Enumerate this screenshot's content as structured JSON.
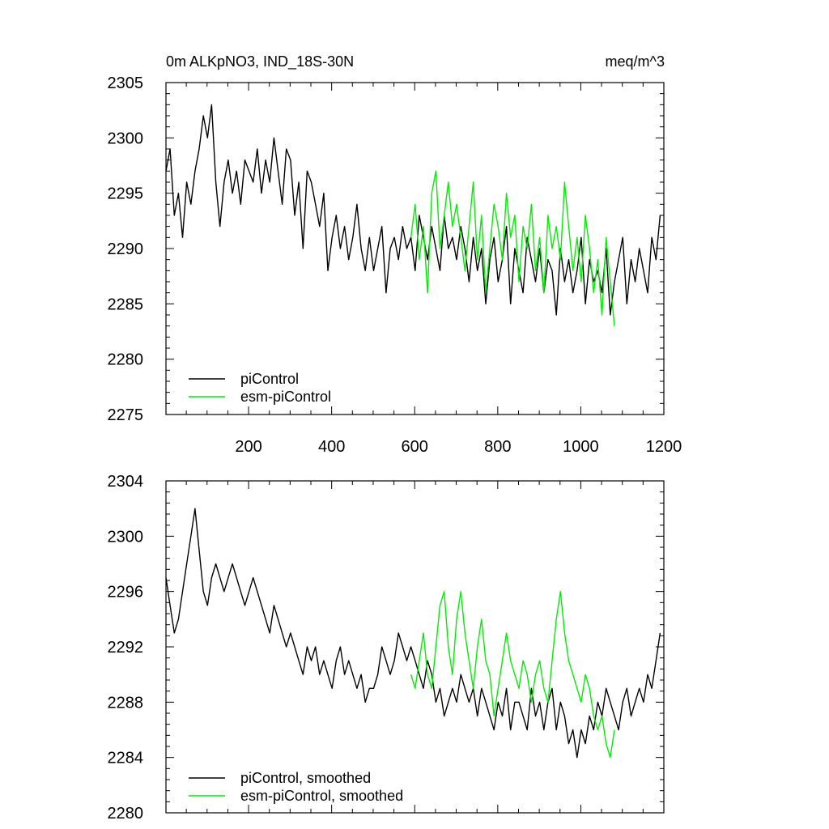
{
  "chart_data": [
    {
      "type": "line",
      "title": "0m ALKpNO3, IND_18S-30N",
      "units": "meq/m^3",
      "xlim": [
        1,
        1200
      ],
      "ylim": [
        2275,
        2305
      ],
      "x_ticks": [
        200,
        400,
        600,
        800,
        1000,
        1200
      ],
      "y_ticks": [
        2275,
        2280,
        2285,
        2290,
        2295,
        2300,
        2305
      ],
      "legend": "bottom-left",
      "series": [
        {
          "name": "piControl",
          "color": "#000000",
          "x_start": 1,
          "x_step": 10,
          "values": [
            2297,
            2299,
            2293,
            2295,
            2291,
            2296,
            2294,
            2297,
            2299,
            2302,
            2300,
            2303,
            2296,
            2292,
            2296,
            2298,
            2295,
            2297,
            2294,
            2298,
            2297,
            2296,
            2299,
            2295,
            2298,
            2296,
            2300,
            2297,
            2294,
            2299,
            2298,
            2293,
            2296,
            2290,
            2297,
            2296,
            2294,
            2292,
            2295,
            2288,
            2291,
            2293,
            2290,
            2292,
            2289,
            2291,
            2294,
            2290,
            2288,
            2291,
            2288,
            2290,
            2292,
            2286,
            2290,
            2291,
            2289,
            2292,
            2290,
            2291,
            2288,
            2293,
            2291,
            2289,
            2292,
            2290,
            2288,
            2293,
            2290,
            2291,
            2289,
            2292,
            2290,
            2287,
            2291,
            2288,
            2290,
            2285,
            2289,
            2291,
            2287,
            2289,
            2292,
            2285,
            2290,
            2288,
            2286,
            2291,
            2289,
            2287,
            2290,
            2286,
            2289,
            2288,
            2284,
            2290,
            2287,
            2289,
            2286,
            2288,
            2291,
            2285,
            2289,
            2287,
            2288,
            2286,
            2290,
            2284,
            2287,
            2289,
            2291,
            2285,
            2289,
            2287,
            2290,
            2288,
            2286,
            2291,
            2289,
            2293
          ]
        },
        {
          "name": "esm-piControl",
          "color": "#00ee00",
          "x_start": 591,
          "x_step": 10,
          "values": [
            2291,
            2294,
            2289,
            2292,
            2286,
            2295,
            2297,
            2290,
            2293,
            2296,
            2292,
            2294,
            2291,
            2288,
            2292,
            2296,
            2289,
            2293,
            2286,
            2290,
            2294,
            2292,
            2289,
            2295,
            2291,
            2293,
            2287,
            2292,
            2290,
            2294,
            2288,
            2291,
            2286,
            2293,
            2290,
            2292,
            2289,
            2296,
            2292,
            2288,
            2291,
            2287,
            2293,
            2290,
            2286,
            2289,
            2284,
            2291,
            2287,
            2283
          ]
        }
      ],
      "legend_labels": [
        "piControl",
        "esm-piControl"
      ]
    },
    {
      "type": "line",
      "title": "",
      "xlim": [
        1,
        1200
      ],
      "ylim": [
        2280,
        2304
      ],
      "x_ticks": [
        200,
        400,
        600,
        800,
        1000,
        1200
      ],
      "y_ticks": [
        2280,
        2284,
        2288,
        2292,
        2296,
        2300,
        2304
      ],
      "legend": "bottom-left",
      "series": [
        {
          "name": "piControl, smoothed",
          "color": "#000000",
          "x_start": 1,
          "x_step": 10,
          "values": [
            2297,
            2295,
            2293,
            2294,
            2296,
            2298,
            2300,
            2302,
            2299,
            2296,
            2295,
            2297,
            2298,
            2297,
            2296,
            2297,
            2298,
            2297,
            2296,
            2295,
            2296,
            2297,
            2296,
            2295,
            2294,
            2293,
            2295,
            2294,
            2293,
            2292,
            2293,
            2292,
            2291,
            2290,
            2292,
            2291,
            2292,
            2290,
            2291,
            2290,
            2289,
            2291,
            2292,
            2290,
            2291,
            2290,
            2289,
            2290,
            2288,
            2289,
            2289,
            2290,
            2292,
            2291,
            2290,
            2291,
            2293,
            2292,
            2291,
            2292,
            2291,
            2290,
            2289,
            2291,
            2290,
            2288,
            2289,
            2287,
            2288,
            2289,
            2288,
            2290,
            2289,
            2288,
            2289,
            2287,
            2289,
            2288,
            2287,
            2286,
            2288,
            2287,
            2289,
            2286,
            2288,
            2288,
            2287,
            2286,
            2289,
            2287,
            2288,
            2286,
            2288,
            2289,
            2286,
            2288,
            2287,
            2285,
            2286,
            2284,
            2286,
            2285,
            2287,
            2286,
            2288,
            2287,
            2289,
            2288,
            2287,
            2286,
            2288,
            2289,
            2287,
            2288,
            2289,
            2288,
            2290,
            2289,
            2291,
            2293
          ]
        },
        {
          "name": "esm-piControl, smoothed",
          "color": "#00ee00",
          "x_start": 591,
          "x_step": 10,
          "values": [
            2290,
            2289,
            2291,
            2293,
            2290,
            2289,
            2292,
            2295,
            2296,
            2292,
            2290,
            2294,
            2296,
            2293,
            2291,
            2289,
            2292,
            2294,
            2291,
            2290,
            2287,
            2289,
            2291,
            2293,
            2291,
            2290,
            2289,
            2291,
            2290,
            2288,
            2290,
            2291,
            2289,
            2288,
            2291,
            2294,
            2296,
            2293,
            2291,
            2290,
            2289,
            2288,
            2290,
            2289,
            2287,
            2286,
            2287,
            2285,
            2284,
            2286
          ]
        }
      ],
      "legend_labels": [
        "piControl, smoothed",
        "esm-piControl, smoothed"
      ]
    }
  ]
}
